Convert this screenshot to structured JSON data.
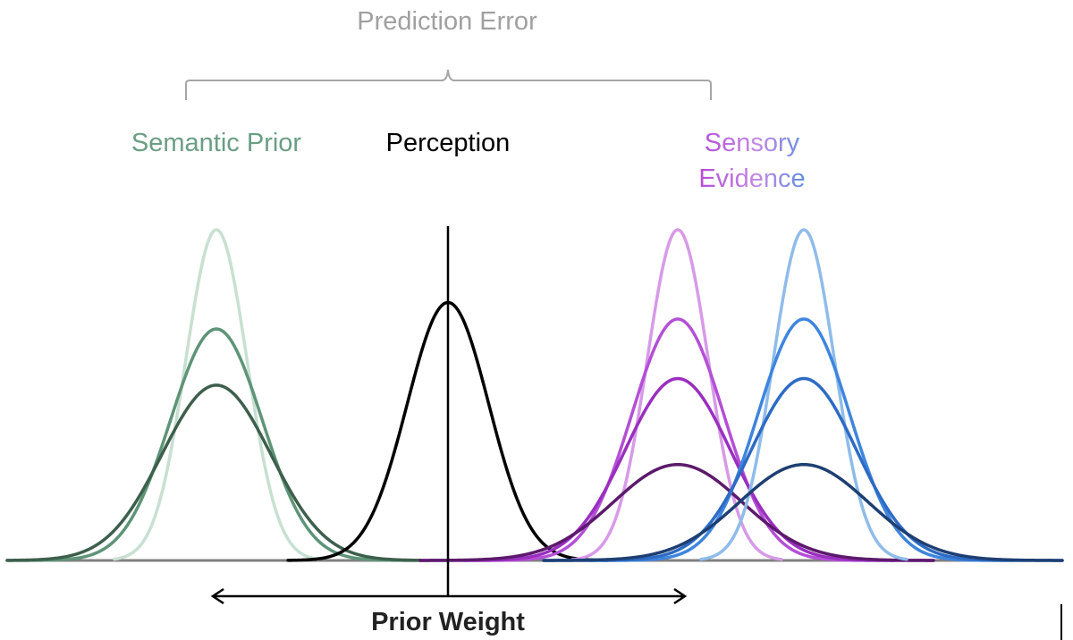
{
  "labels": {
    "prediction_error": "Prediction Error",
    "semantic_prior": "Semantic Prior",
    "perception": "Perception",
    "sensory_line1": "Sensory",
    "sensory_line2": "Evidence",
    "prior_weight": "Prior Weight"
  },
  "colors": {
    "prior_light": "#c8e0d2",
    "prior_mid": "#5e9477",
    "prior_dark": "#3d5f4c",
    "perception": "#000000",
    "sensory_purple_light": "#d79ae8",
    "sensory_purple": "#b44fd6",
    "sensory_purple_mid": "#9a2fbf",
    "sensory_purple_dark": "#5c1a6c",
    "sensory_blue_light": "#8fbcea",
    "sensory_blue": "#3e85dd",
    "sensory_blue_mid": "#2d6bc4",
    "sensory_blue_dark": "#1e3f73",
    "brace": "#a6a6a6",
    "prediction_error_text": "#a0a0a0",
    "semantic_prior_text": "#6a9e83",
    "axis": "#808080",
    "arrow": "#000000"
  },
  "curve_groups": [
    {
      "name": "semantic-prior",
      "curves": [
        {
          "name": "semantic-prior-narrow",
          "mean": 0,
          "sd": 0.9,
          "peak": 1.0,
          "color_key": "prior_light"
        },
        {
          "name": "semantic-prior-medium",
          "mean": 0,
          "sd": 1.35,
          "peak": 0.7,
          "color_key": "prior_mid"
        },
        {
          "name": "semantic-prior-wide",
          "mean": 0,
          "sd": 1.6,
          "peak": 0.53,
          "color_key": "prior_dark"
        }
      ]
    },
    {
      "name": "perception",
      "curves": [
        {
          "name": "perception-curve",
          "mean": 0,
          "sd": 1.2,
          "peak": 0.78,
          "color_key": "perception"
        }
      ]
    },
    {
      "name": "sensory-evidence-purple",
      "curves": [
        {
          "name": "sensory-purple-narrow",
          "mean": 0,
          "sd": 0.9,
          "peak": 1.0,
          "color_key": "sensory_purple_light"
        },
        {
          "name": "sensory-purple-medium",
          "mean": 0,
          "sd": 1.35,
          "peak": 0.73,
          "color_key": "sensory_purple"
        },
        {
          "name": "sensory-purple-wide",
          "mean": 0,
          "sd": 1.55,
          "peak": 0.55,
          "color_key": "sensory_purple_mid"
        },
        {
          "name": "sensory-purple-widest",
          "mean": 0,
          "sd": 1.9,
          "peak": 0.29,
          "color_key": "sensory_purple_dark"
        }
      ]
    },
    {
      "name": "sensory-evidence-blue",
      "curves": [
        {
          "name": "sensory-blue-narrow",
          "mean": 0,
          "sd": 0.9,
          "peak": 1.0,
          "color_key": "sensory_blue_light"
        },
        {
          "name": "sensory-blue-medium",
          "mean": 0,
          "sd": 1.35,
          "peak": 0.73,
          "color_key": "sensory_blue"
        },
        {
          "name": "sensory-blue-wide",
          "mean": 0,
          "sd": 1.55,
          "peak": 0.55,
          "color_key": "sensory_blue_mid"
        },
        {
          "name": "sensory-blue-widest",
          "mean": 0,
          "sd": 1.9,
          "peak": 0.29,
          "color_key": "sensory_blue_dark"
        }
      ]
    }
  ]
}
